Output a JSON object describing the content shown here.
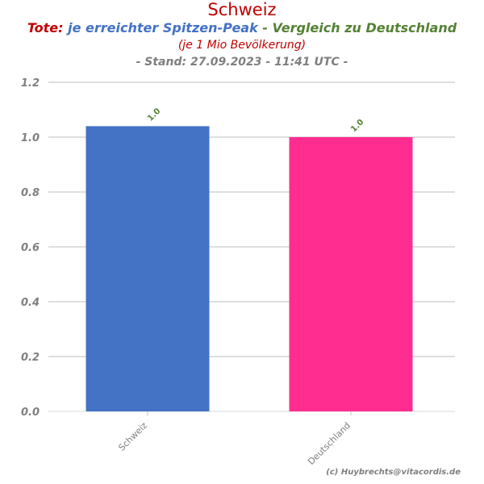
{
  "header": {
    "title": "Schweiz",
    "subtitle_part1": "Tote:",
    "subtitle_part2": " je erreichter Spitzen-Peak",
    "subtitle_part3": " - Vergleich zu Deutschland",
    "subtitle2": "(je 1 Mio Bevölkerung)",
    "subtitle3": "- Stand: 27.09.2023 - 11:41 UTC -"
  },
  "footer": {
    "credit": "(c) Huybrechts@vitacordis.de"
  },
  "chart_data": {
    "type": "bar",
    "categories": [
      "Schweiz",
      "Deutschland"
    ],
    "values": [
      1.04,
      1.0
    ],
    "data_labels": [
      "1.0",
      "1.0"
    ],
    "colors": [
      "#4472c4",
      "#ff2d8f"
    ],
    "ylim": [
      0,
      1.2
    ],
    "yticks": [
      "0.0",
      "0.2",
      "0.4",
      "0.6",
      "0.8",
      "1.0",
      "1.2"
    ],
    "grid": true,
    "xlabel": "",
    "ylabel": ""
  }
}
